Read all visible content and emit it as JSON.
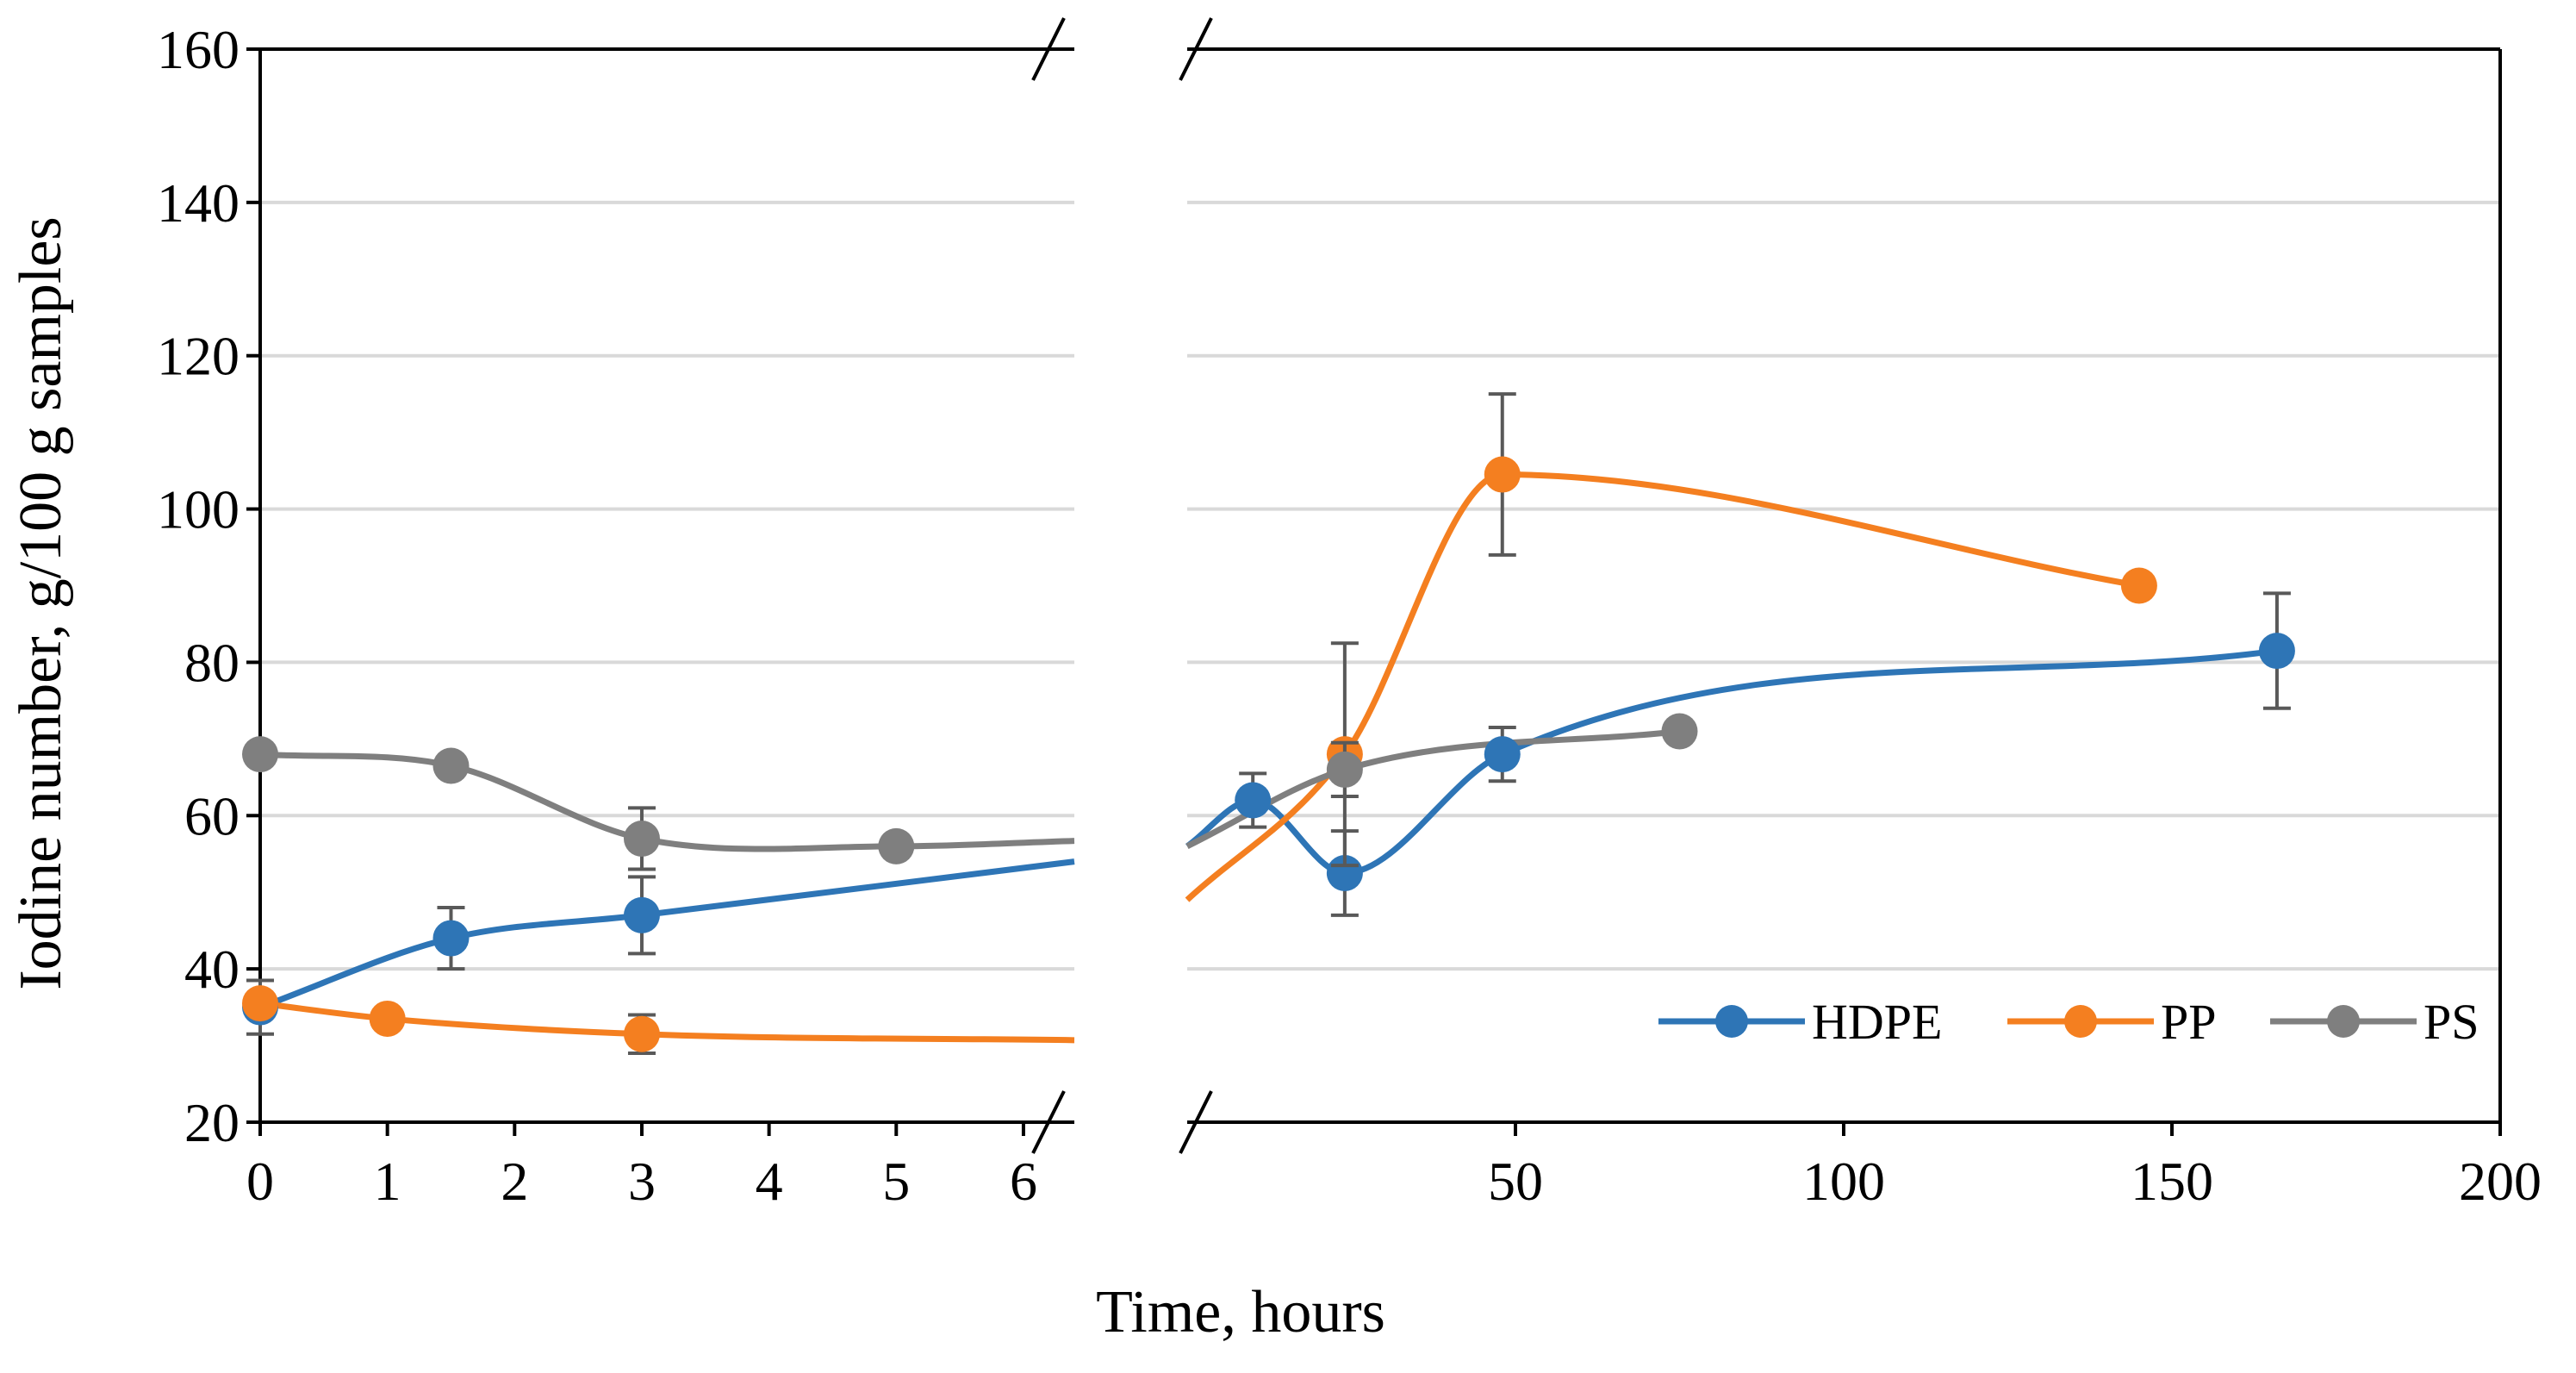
{
  "chart_data": {
    "type": "line",
    "xlabel": "Time, hours",
    "ylabel": "Iodine number, g/100 g samples",
    "ylim": [
      20,
      160
    ],
    "yticks": [
      20,
      40,
      60,
      80,
      100,
      120,
      140,
      160
    ],
    "grid": true,
    "legend_position": "bottom-right",
    "panels": [
      {
        "name": "left",
        "xlim": [
          0,
          6.4
        ],
        "xticks": [
          0,
          1,
          2,
          3,
          4,
          5,
          6
        ]
      },
      {
        "name": "right",
        "xlim": [
          0,
          200
        ],
        "xticks": [
          50,
          100,
          150,
          200
        ]
      }
    ],
    "series": [
      {
        "name": "HDPE",
        "color": "#2E75B6",
        "left_points": [
          {
            "x": 0,
            "y": 35,
            "err": 3.5
          },
          {
            "x": 1.5,
            "y": 44,
            "err": 4
          },
          {
            "x": 3,
            "y": 47,
            "err": 5
          },
          {
            "x": 6.4,
            "y": 54,
            "err": null
          }
        ],
        "right_points": [
          {
            "x": 0,
            "y": 56,
            "err": null
          },
          {
            "x": 10,
            "y": 62,
            "err": 3.5
          },
          {
            "x": 24,
            "y": 52.5,
            "err": 5.5
          },
          {
            "x": 48,
            "y": 68,
            "err": 3.5
          },
          {
            "x": 166,
            "y": 81.5,
            "err": 7.5
          }
        ],
        "left_markers": [
          0,
          1,
          2
        ],
        "right_markers": [
          1,
          2,
          3,
          4
        ]
      },
      {
        "name": "PP",
        "color": "#F47F20",
        "left_points": [
          {
            "x": 0,
            "y": 35.5,
            "err": null
          },
          {
            "x": 1,
            "y": 33.5,
            "err": null
          },
          {
            "x": 3,
            "y": 31.5,
            "err": 2.5
          },
          {
            "x": 6.4,
            "y": 30.7,
            "err": null
          }
        ],
        "right_points": [
          {
            "x": 0,
            "y": 49,
            "err": null
          },
          {
            "x": 24,
            "y": 68,
            "err": 14.5
          },
          {
            "x": 48,
            "y": 104.5,
            "err": 10.5
          },
          {
            "x": 145,
            "y": 90,
            "err": null
          }
        ],
        "left_markers": [
          0,
          1,
          2
        ],
        "right_markers": [
          1,
          2,
          3
        ]
      },
      {
        "name": "PS",
        "color": "#7F7F7F",
        "left_points": [
          {
            "x": 0,
            "y": 68,
            "err": null
          },
          {
            "x": 1.5,
            "y": 66.5,
            "err": null
          },
          {
            "x": 3,
            "y": 57,
            "err": 4
          },
          {
            "x": 5,
            "y": 56,
            "err": null
          },
          {
            "x": 6.4,
            "y": 56.7,
            "err": null
          }
        ],
        "right_points": [
          {
            "x": 0,
            "y": 56,
            "err": null
          },
          {
            "x": 24,
            "y": 66,
            "err": 3.5
          },
          {
            "x": 75,
            "y": 71,
            "err": null
          }
        ],
        "left_markers": [
          0,
          1,
          2,
          3
        ],
        "right_markers": [
          1,
          2
        ]
      }
    ]
  }
}
